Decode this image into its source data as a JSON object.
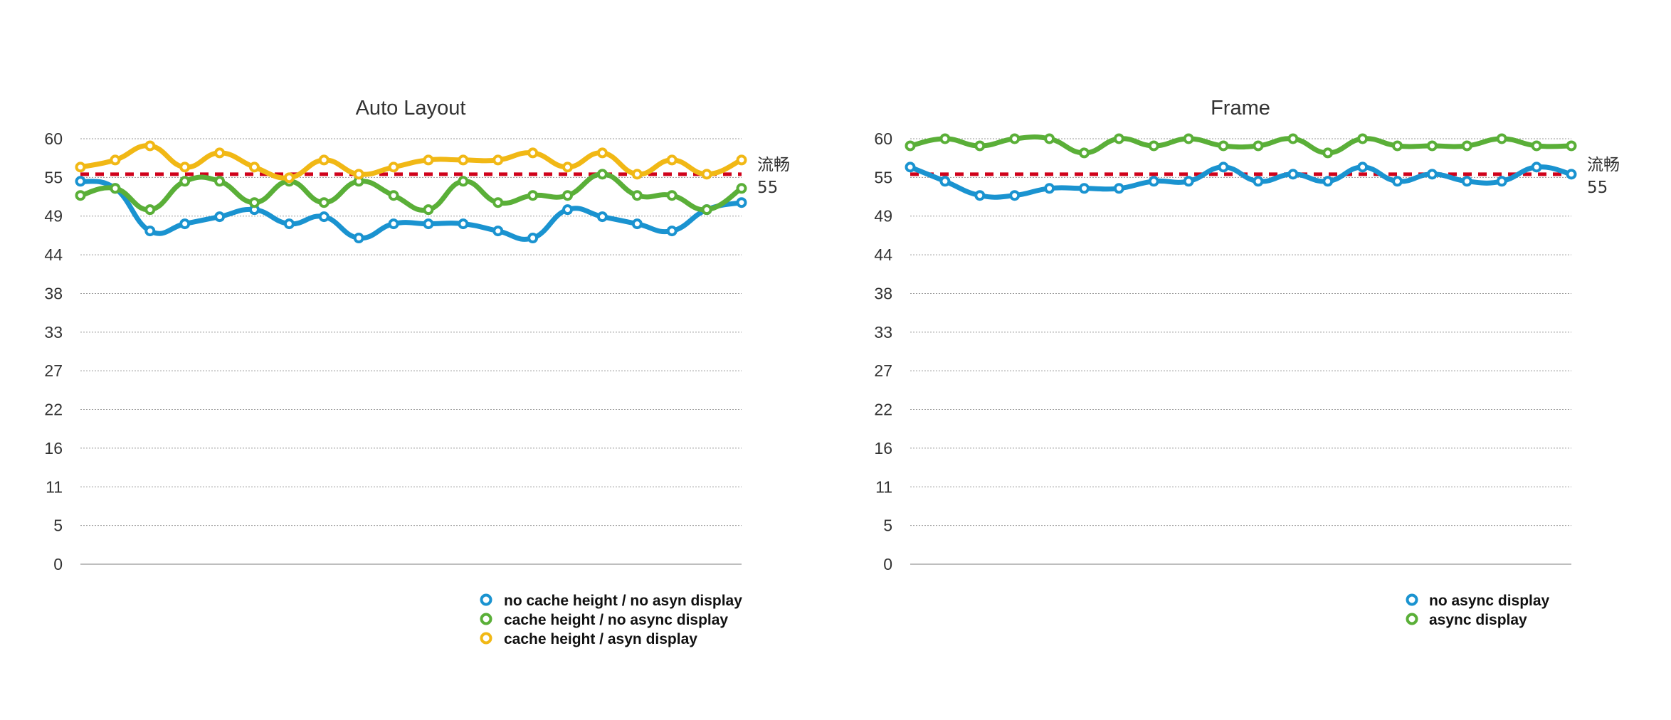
{
  "chart_data": [
    {
      "type": "line",
      "title": "Auto Layout",
      "xlabel": "",
      "ylabel": "",
      "ylim": [
        0,
        60
      ],
      "yticks": [
        "0",
        "5",
        "11",
        "16",
        "22",
        "27",
        "33",
        "38",
        "44",
        "49",
        "55",
        "60"
      ],
      "grid": true,
      "x": [
        1,
        2,
        3,
        4,
        5,
        6,
        7,
        8,
        9,
        10,
        11,
        12,
        13,
        14,
        15,
        16,
        17,
        18,
        19,
        20
      ],
      "series": [
        {
          "name": "no cache height / no asyn display",
          "color": "#1a93d0",
          "values": [
            54,
            53,
            47,
            48,
            49,
            50,
            48,
            49,
            46,
            48,
            48,
            48,
            47,
            46,
            50,
            49,
            48,
            47,
            50,
            51
          ]
        },
        {
          "name": "cache height / no async display",
          "color": "#5aaf38",
          "values": [
            52,
            53,
            50,
            54,
            54,
            51,
            54,
            51,
            54,
            52,
            50,
            54,
            51,
            52,
            52,
            55,
            52,
            52,
            50,
            53
          ]
        },
        {
          "name": "cache height / asyn display",
          "color": "#f1b815",
          "values": [
            56,
            57,
            59,
            56,
            58,
            56,
            54.5,
            57,
            55,
            56,
            57,
            57,
            57,
            58,
            56,
            58,
            55,
            57,
            55,
            57
          ]
        }
      ],
      "threshold": {
        "value": 55,
        "label_top": "流畅",
        "label_bottom": "55",
        "color": "#d0021b"
      },
      "legend_position": "bottom-right"
    },
    {
      "type": "line",
      "title": "Frame",
      "xlabel": "",
      "ylabel": "",
      "ylim": [
        0,
        60
      ],
      "yticks": [
        "0",
        "5",
        "11",
        "16",
        "22",
        "27",
        "33",
        "38",
        "44",
        "49",
        "55",
        "60"
      ],
      "grid": true,
      "x": [
        1,
        2,
        3,
        4,
        5,
        6,
        7,
        8,
        9,
        10,
        11,
        12,
        13,
        14,
        15,
        16,
        17,
        18,
        19,
        20
      ],
      "series": [
        {
          "name": "no async display",
          "color": "#1a93d0",
          "values": [
            56,
            54,
            52,
            52,
            53,
            53,
            53,
            54,
            54,
            56,
            54,
            55,
            54,
            56,
            54,
            55,
            54,
            54,
            56,
            55
          ]
        },
        {
          "name": "async display",
          "color": "#5aaf38",
          "values": [
            59,
            60,
            59,
            60,
            60,
            58,
            60,
            59,
            60,
            59,
            59,
            60,
            58,
            60,
            59,
            59,
            59,
            60,
            59,
            59
          ]
        }
      ],
      "threshold": {
        "value": 55,
        "label_top": "流畅",
        "label_bottom": "55",
        "color": "#d0021b"
      },
      "legend_position": "bottom-right"
    }
  ]
}
